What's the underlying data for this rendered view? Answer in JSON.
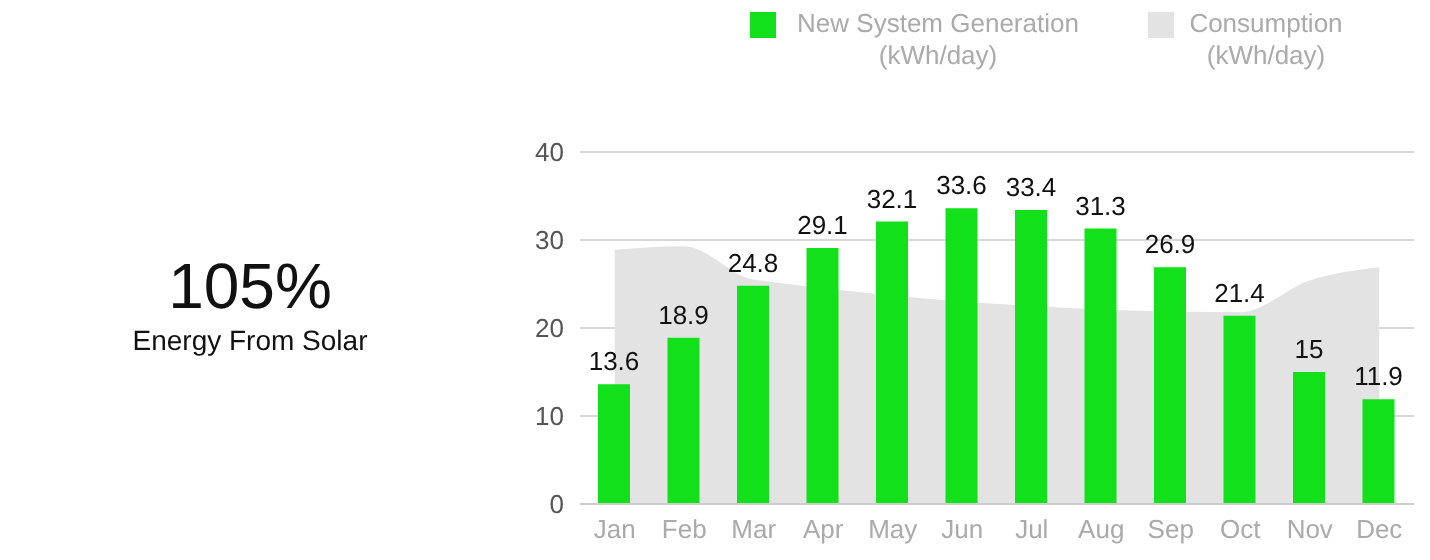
{
  "chart_data": [
    {
      "type": "other",
      "annotations": [
        "105%",
        "Energy From Solar"
      ]
    },
    {
      "type": "bar",
      "categories": [
        "Jan",
        "Feb",
        "Mar",
        "Apr",
        "May",
        "Jun",
        "Jul",
        "Aug",
        "Sep",
        "Oct",
        "Nov",
        "Dec"
      ],
      "series": [
        {
          "name": "New System Generation (kWh/day)",
          "type": "bar",
          "color": "#11e01a",
          "values": [
            13.6,
            18.9,
            24.8,
            29.1,
            32.1,
            33.6,
            33.4,
            31.3,
            26.9,
            21.4,
            15,
            11.9
          ],
          "value_labels": [
            "13.6",
            "18.9",
            "24.8",
            "29.1",
            "32.1",
            "33.6",
            "33.4",
            "31.3",
            "26.9",
            "21.4",
            "15",
            "11.9"
          ]
        },
        {
          "name": "Consumption (kWh/day)",
          "type": "area",
          "color": "#e3e3e3",
          "values": [
            28.9,
            29.3,
            25.5,
            null,
            null,
            null,
            null,
            null,
            null,
            21.8,
            25.4,
            26.9
          ]
        }
      ],
      "ylim": [
        0,
        40
      ],
      "yticks": [
        0,
        10,
        20,
        30,
        40
      ],
      "grid": "y",
      "legend": "top"
    }
  ]
}
